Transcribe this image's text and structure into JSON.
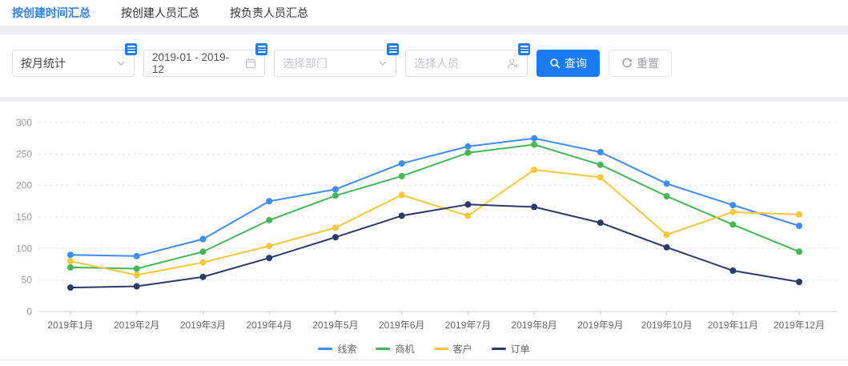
{
  "tabs": [
    {
      "label": "按创建时间汇总",
      "active": true
    },
    {
      "label": "按创建人员汇总",
      "active": false
    },
    {
      "label": "按负责人员汇总",
      "active": false
    }
  ],
  "filters": {
    "stat_type": {
      "value": "按月统计"
    },
    "date_range": {
      "value": "2019-01 - 2019-12"
    },
    "department": {
      "placeholder": "选择部门"
    },
    "person": {
      "placeholder": "选择人员"
    },
    "search_label": "查询",
    "reset_label": "重置"
  },
  "colors": {
    "accent_blue": "#1b7bf0",
    "tab_active": "#2e7ff0",
    "grid_line": "#e4e4e4",
    "axis_line": "#cccccc",
    "axis_label": "#999999",
    "category_label": "#666666"
  },
  "chart_data": {
    "type": "line",
    "categories": [
      "2019年1月",
      "2019年2月",
      "2019年3月",
      "2019年4月",
      "2019年5月",
      "2019年6月",
      "2019年7月",
      "2019年8月",
      "2019年9月",
      "2019年10月",
      "2019年11月",
      "2019年12月"
    ],
    "series": [
      {
        "name": "线索",
        "color": "#3d8cf7",
        "values": [
          90,
          88,
          115,
          175,
          194,
          235,
          262,
          275,
          253,
          203,
          169,
          136
        ]
      },
      {
        "name": "商机",
        "color": "#43b854",
        "values": [
          70,
          68,
          95,
          145,
          184,
          215,
          252,
          265,
          233,
          183,
          138,
          95
        ]
      },
      {
        "name": "客户",
        "color": "#f5c73b",
        "values": [
          80,
          58,
          78,
          104,
          133,
          185,
          152,
          225,
          213,
          122,
          158,
          154
        ]
      },
      {
        "name": "订单",
        "color": "#2b3a6b",
        "values": [
          38,
          40,
          55,
          85,
          118,
          152,
          170,
          166,
          141,
          102,
          65,
          47
        ]
      }
    ],
    "title": "",
    "xlabel": "",
    "ylabel": "",
    "ylim": [
      0,
      300
    ],
    "yticks": [
      0,
      50,
      100,
      150,
      200,
      250,
      300
    ],
    "grid": "dashed-horizontal",
    "legend_position": "bottom"
  }
}
